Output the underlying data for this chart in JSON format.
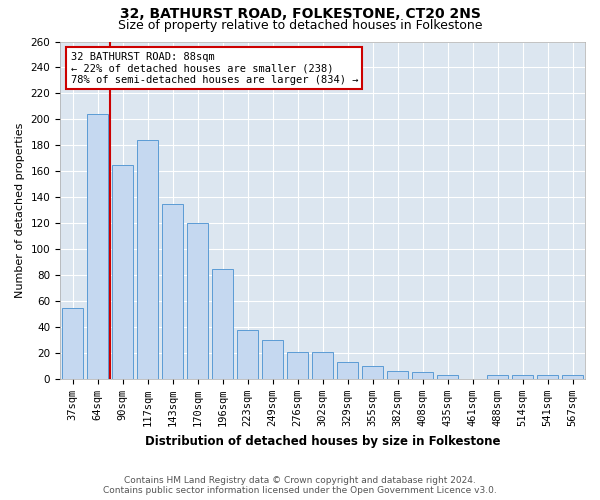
{
  "title": "32, BATHURST ROAD, FOLKESTONE, CT20 2NS",
  "subtitle": "Size of property relative to detached houses in Folkestone",
  "xlabel": "Distribution of detached houses by size in Folkestone",
  "ylabel": "Number of detached properties",
  "categories": [
    "37sqm",
    "64sqm",
    "90sqm",
    "117sqm",
    "143sqm",
    "170sqm",
    "196sqm",
    "223sqm",
    "249sqm",
    "276sqm",
    "302sqm",
    "329sqm",
    "355sqm",
    "382sqm",
    "408sqm",
    "435sqm",
    "461sqm",
    "488sqm",
    "514sqm",
    "541sqm",
    "567sqm"
  ],
  "values": [
    55,
    204,
    165,
    184,
    135,
    120,
    85,
    38,
    30,
    21,
    21,
    13,
    10,
    6,
    5,
    3,
    0,
    3,
    3,
    3,
    3
  ],
  "bar_color": "#c5d8f0",
  "bar_edge_color": "#5b9bd5",
  "red_line_x": 1.5,
  "red_line_label": "32 BATHURST ROAD: 88sqm",
  "annotation_line1": "← 22% of detached houses are smaller (238)",
  "annotation_line2": "78% of semi-detached houses are larger (834) →",
  "annotation_box_color": "#ffffff",
  "annotation_box_edge": "#cc0000",
  "red_line_color": "#cc0000",
  "ylim": [
    0,
    260
  ],
  "yticks": [
    0,
    20,
    40,
    60,
    80,
    100,
    120,
    140,
    160,
    180,
    200,
    220,
    240,
    260
  ],
  "background_color": "#dce6f0",
  "footer_line1": "Contains HM Land Registry data © Crown copyright and database right 2024.",
  "footer_line2": "Contains public sector information licensed under the Open Government Licence v3.0.",
  "title_fontsize": 10,
  "subtitle_fontsize": 9,
  "xlabel_fontsize": 8.5,
  "ylabel_fontsize": 8,
  "tick_fontsize": 7.5,
  "annot_fontsize": 7.5,
  "footer_fontsize": 6.5
}
